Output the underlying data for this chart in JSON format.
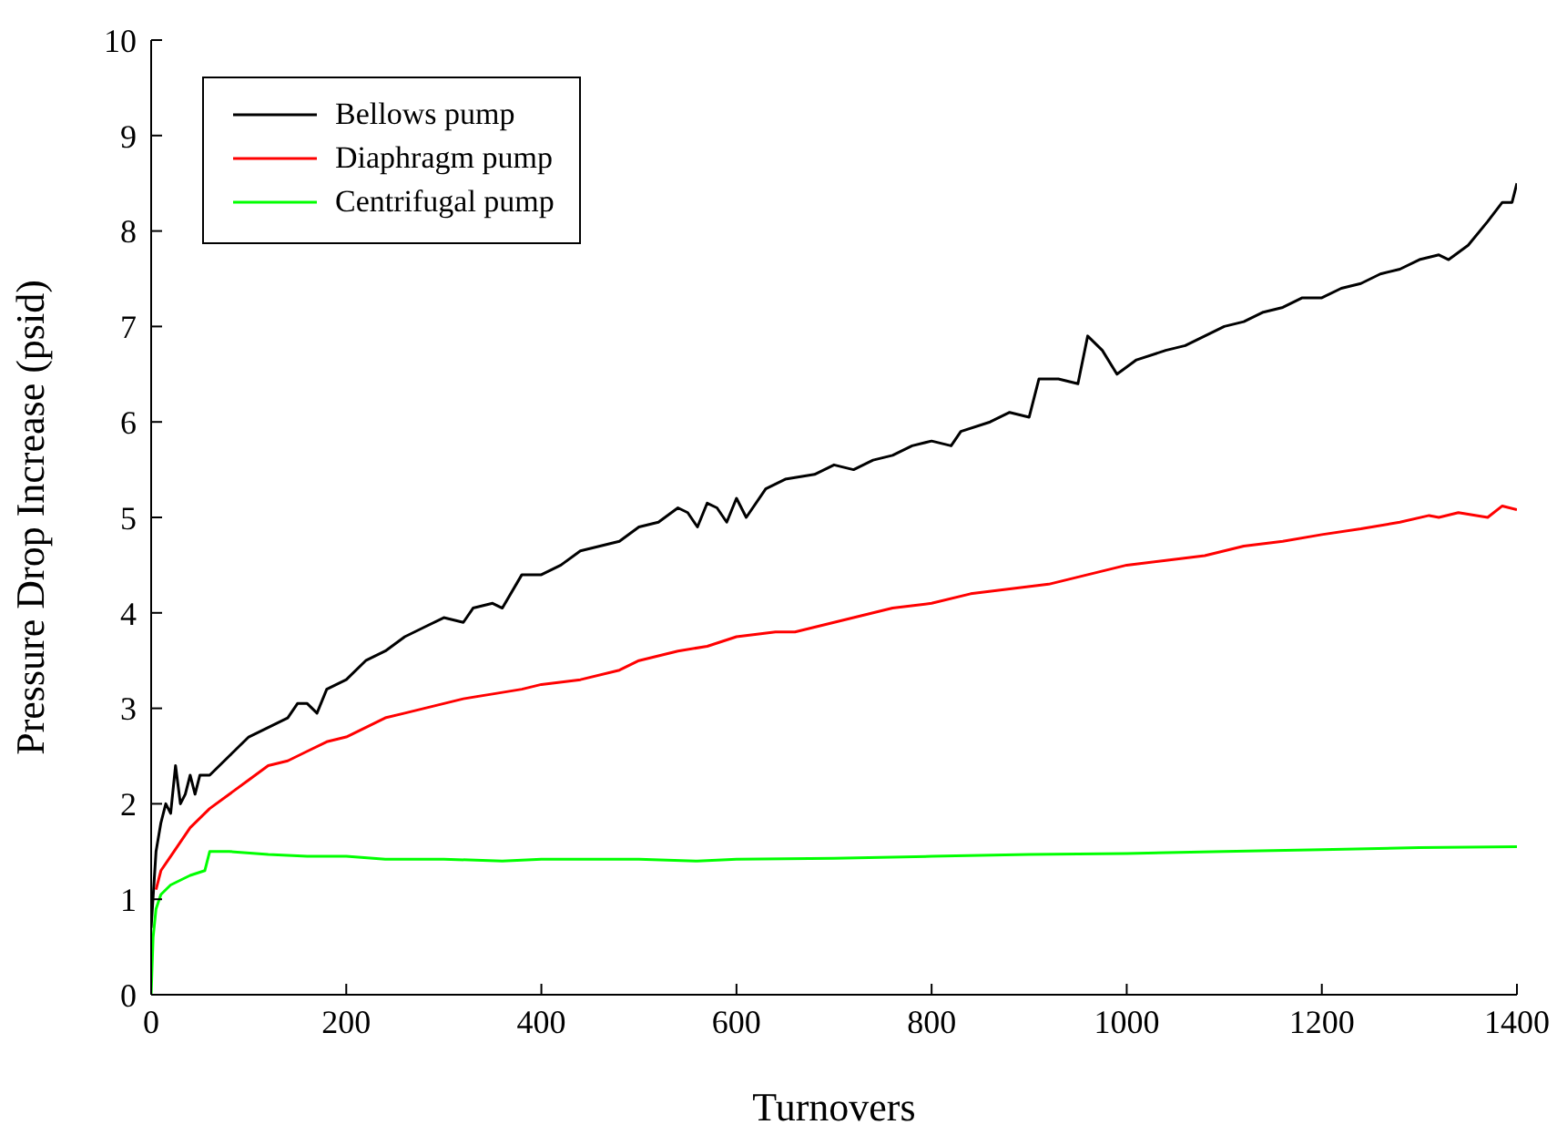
{
  "chart_data": {
    "type": "line",
    "xlabel": "Turnovers",
    "ylabel": "Pressure Drop Increase (psid)",
    "xlim": [
      0,
      1400
    ],
    "xticks": [
      0,
      200,
      400,
      600,
      800,
      1000,
      1200,
      1400
    ],
    "ylim": [
      0,
      10
    ],
    "yticks": [
      0,
      1,
      2,
      3,
      4,
      5,
      6,
      7,
      8,
      9,
      10
    ],
    "grid": false,
    "legend": "top left",
    "marker": "none",
    "line_style": "solid",
    "series": [
      {
        "name": "Bellows pump",
        "color": "#000000",
        "x": [
          0,
          5,
          10,
          15,
          20,
          25,
          30,
          35,
          40,
          45,
          50,
          60,
          80,
          100,
          120,
          140,
          150,
          160,
          170,
          180,
          200,
          220,
          240,
          260,
          280,
          300,
          320,
          330,
          350,
          360,
          380,
          400,
          420,
          440,
          460,
          480,
          500,
          520,
          540,
          550,
          560,
          570,
          580,
          590,
          600,
          610,
          630,
          650,
          680,
          700,
          720,
          740,
          760,
          780,
          800,
          820,
          830,
          860,
          880,
          900,
          910,
          930,
          950,
          960,
          975,
          990,
          1010,
          1040,
          1060,
          1080,
          1100,
          1120,
          1140,
          1160,
          1180,
          1200,
          1220,
          1240,
          1260,
          1280,
          1300,
          1320,
          1330,
          1350,
          1370,
          1385,
          1395,
          1400
        ],
        "values": [
          0.7,
          1.5,
          1.8,
          2.0,
          1.9,
          2.4,
          2.0,
          2.1,
          2.3,
          2.1,
          2.3,
          2.3,
          2.5,
          2.7,
          2.8,
          2.9,
          3.05,
          3.05,
          2.95,
          3.2,
          3.3,
          3.5,
          3.6,
          3.75,
          3.85,
          3.95,
          3.9,
          4.05,
          4.1,
          4.05,
          4.4,
          4.4,
          4.5,
          4.65,
          4.7,
          4.75,
          4.9,
          4.95,
          5.1,
          5.05,
          4.9,
          5.15,
          5.1,
          4.95,
          5.2,
          5.0,
          5.3,
          5.4,
          5.45,
          5.55,
          5.5,
          5.6,
          5.65,
          5.75,
          5.8,
          5.75,
          5.9,
          6.0,
          6.1,
          6.05,
          6.45,
          6.45,
          6.4,
          6.9,
          6.75,
          6.5,
          6.65,
          6.75,
          6.8,
          6.9,
          7.0,
          7.05,
          7.15,
          7.2,
          7.3,
          7.3,
          7.4,
          7.45,
          7.55,
          7.6,
          7.7,
          7.75,
          7.7,
          7.85,
          8.1,
          8.3,
          8.3,
          8.5
        ]
      },
      {
        "name": "Diaphragm pump",
        "color": "#ff0000",
        "x": [
          5,
          10,
          20,
          30,
          40,
          60,
          80,
          100,
          120,
          140,
          160,
          180,
          200,
          220,
          240,
          260,
          280,
          300,
          320,
          350,
          380,
          400,
          440,
          480,
          500,
          540,
          570,
          600,
          640,
          660,
          680,
          720,
          760,
          800,
          840,
          880,
          920,
          960,
          1000,
          1040,
          1080,
          1120,
          1160,
          1200,
          1240,
          1280,
          1310,
          1320,
          1340,
          1370,
          1385,
          1400
        ],
        "values": [
          1.1,
          1.3,
          1.45,
          1.6,
          1.75,
          1.95,
          2.1,
          2.25,
          2.4,
          2.45,
          2.55,
          2.65,
          2.7,
          2.8,
          2.9,
          2.95,
          3.0,
          3.05,
          3.1,
          3.15,
          3.2,
          3.25,
          3.3,
          3.4,
          3.5,
          3.6,
          3.65,
          3.75,
          3.8,
          3.8,
          3.85,
          3.95,
          4.05,
          4.1,
          4.2,
          4.25,
          4.3,
          4.4,
          4.5,
          4.55,
          4.6,
          4.7,
          4.75,
          4.82,
          4.88,
          4.95,
          5.02,
          5.0,
          5.05,
          5.0,
          5.12,
          5.08
        ]
      },
      {
        "name": "Centrifugal pump",
        "color": "#00ff00",
        "x": [
          0,
          2,
          5,
          10,
          20,
          30,
          40,
          55,
          60,
          80,
          120,
          160,
          200,
          240,
          300,
          360,
          400,
          500,
          560,
          600,
          700,
          800,
          900,
          1000,
          1100,
          1200,
          1300,
          1400
        ],
        "values": [
          0,
          0.6,
          0.9,
          1.05,
          1.15,
          1.2,
          1.25,
          1.3,
          1.5,
          1.5,
          1.47,
          1.45,
          1.45,
          1.42,
          1.42,
          1.4,
          1.42,
          1.42,
          1.4,
          1.42,
          1.43,
          1.45,
          1.47,
          1.48,
          1.5,
          1.52,
          1.54,
          1.55
        ]
      }
    ]
  }
}
